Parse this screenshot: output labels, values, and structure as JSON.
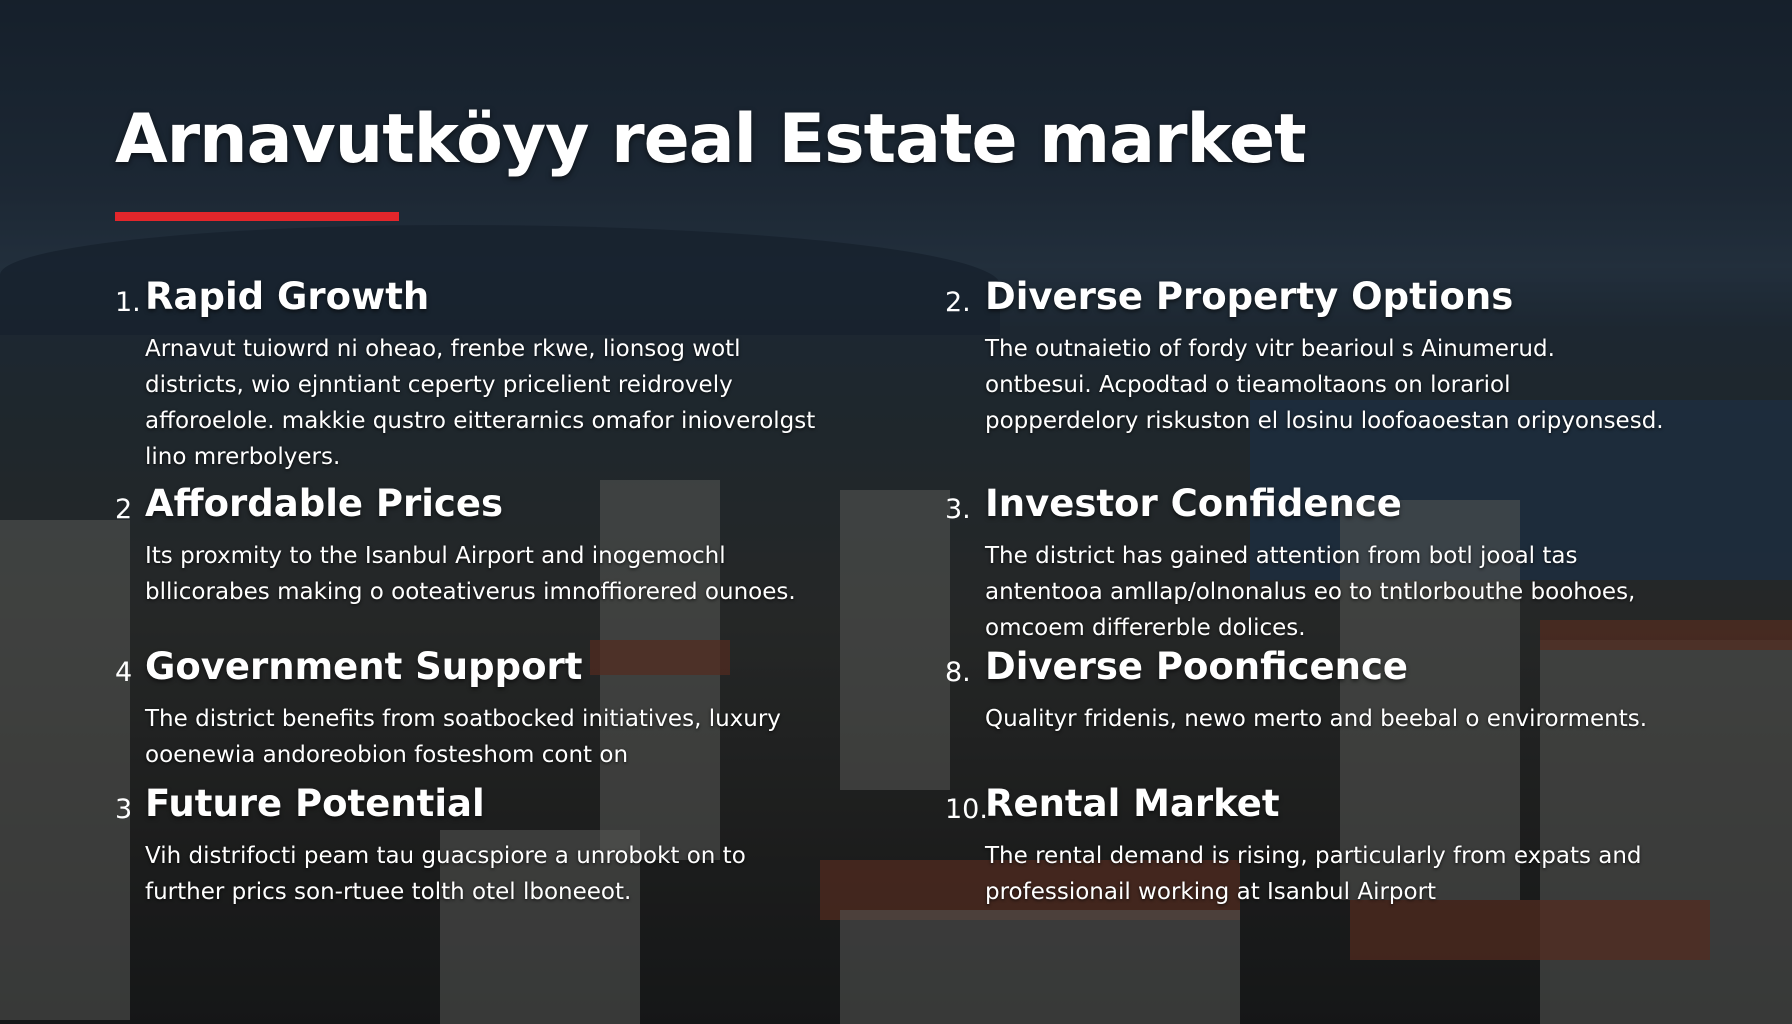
{
  "title": "Arnavutköyy real Estate market",
  "colors": {
    "accent": "#e3262b",
    "text": "#ffffff"
  },
  "items": [
    {
      "number": "1.",
      "heading": "Rapid Growth",
      "body": "Arnavut tuiowrd ni oheao, frenbe rkwe, lionsog wotl districts, wio ejnntiant ceperty pricelient reidrovely afforoelole. makkie qustro eitterarnics omafor inioverolgst lino mrerbolyers."
    },
    {
      "number": "2",
      "heading": "Affordable Prices",
      "body": "Its proxmity to the Isanbul Airport and inogemochl bllicorabes making o ooteativerus imnoffiorered ounoes."
    },
    {
      "number": "4",
      "heading": "Government Support",
      "body": "The district benefits from soatbocked initiatives, luxury ooenewia andoreobion fosteshom cont on"
    },
    {
      "number": "3",
      "heading": "Future Potential",
      "body": "Vih distrifocti peam tau guacspiore a unrobokt on to further prics son-rtuee tolth otel lboneeot."
    },
    {
      "number": "2.",
      "heading": "Diverse Property Options",
      "body": "The outnaietio of fordy vitr bearioul s Ainumerud. ontbesui. Acpodtad o tieamoltaons on lorariol popperdelory riskuston el losinu loofoaoestan oripyonsesd."
    },
    {
      "number": "3.",
      "heading": "Investor Confidence",
      "body": "The district has gained attention from botl jooal tas antentooa amllap/olnonalus eo to tntlorbouthe boohoes, omcoem differerble dolices."
    },
    {
      "number": "8.",
      "heading": "Diverse Poonficence",
      "body": "Qualityr fridenis, newo merto and beebal o envirorments."
    },
    {
      "number": "10.",
      "heading": "Rental Market",
      "body": "The rental demand is rising, particularly from expats and professionail working at Isanbul Airport"
    }
  ]
}
